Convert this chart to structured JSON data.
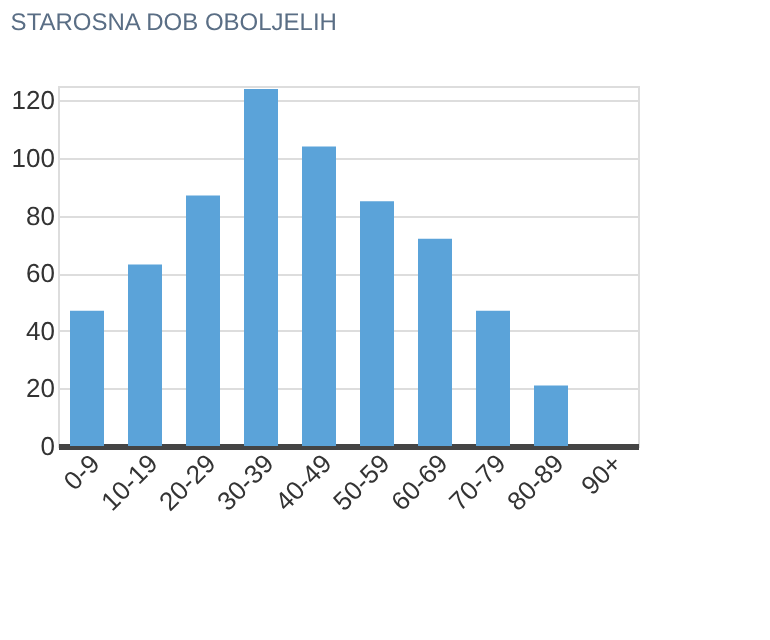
{
  "chart_data": {
    "type": "bar",
    "title": "STAROSNA DOB OBOLJELIH",
    "categories": [
      "0-9",
      "10-19",
      "20-29",
      "30-39",
      "40-49",
      "50-59",
      "60-69",
      "70-79",
      "80-89",
      "90+"
    ],
    "values": [
      47,
      63,
      87,
      124,
      104,
      85,
      72,
      47,
      21,
      0
    ],
    "color": "#5ba3d9",
    "ylim": [
      0,
      125
    ],
    "yticks": [
      0,
      20,
      40,
      60,
      80,
      100,
      120
    ],
    "grid": "y"
  }
}
